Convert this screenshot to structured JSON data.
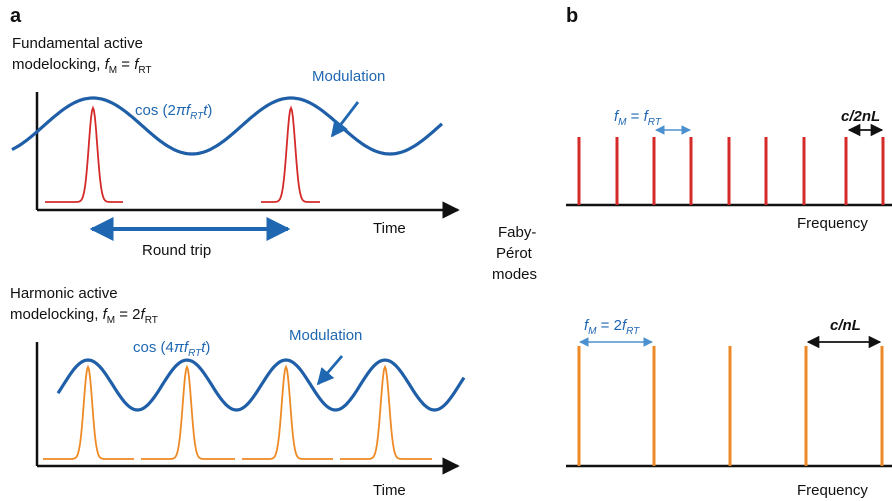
{
  "panel_a": {
    "letter": "a",
    "top": {
      "title_line1": "Fundamental active",
      "title_line2_prefix": "modelocking,",
      "title_eq": {
        "f": "f",
        "sub": "M",
        "eq": " = ",
        "f2": "f",
        "sub2": "RT"
      },
      "cos_label": {
        "pre": "cos (2",
        "pi": "π",
        "f": "f",
        "sub": "RT",
        "t": "t",
        "post": ")"
      },
      "modulation_label": "Modulation",
      "time_label": "Time",
      "round_trip_label": "Round trip"
    },
    "bottom": {
      "title_line1": "Harmonic active",
      "title_line2_prefix": "modelocking,",
      "title_eq": {
        "f": "f",
        "sub": "M",
        "eq": " = 2",
        "f2": "f",
        "sub2": "RT"
      },
      "cos_label": {
        "pre": "cos (4",
        "pi": "π",
        "f": "f",
        "sub": "RT",
        "t": "t",
        "post": ")"
      },
      "modulation_label": "Modulation",
      "time_label": "Time"
    },
    "colors": {
      "modulation": "#1f5fa8",
      "pulse_top": "#d42a2a",
      "pulse_bottom": "#ee8a26"
    }
  },
  "center_label": {
    "line1": "Faby-",
    "line2": "Pérot",
    "line3": "modes"
  },
  "panel_b": {
    "letter": "b",
    "top": {
      "spacing_eq": {
        "f": "f",
        "sub": "M",
        "eq": " = ",
        "f2": "f",
        "sub2": "RT"
      },
      "mode_spacing": "c/2nL",
      "freq_label": "Frequency"
    },
    "bottom": {
      "spacing_eq": {
        "f": "f",
        "sub": "M",
        "eq": " = 2",
        "f2": "f",
        "sub2": "RT"
      },
      "mode_spacing": "c/nL",
      "freq_label": "Frequency"
    }
  }
}
